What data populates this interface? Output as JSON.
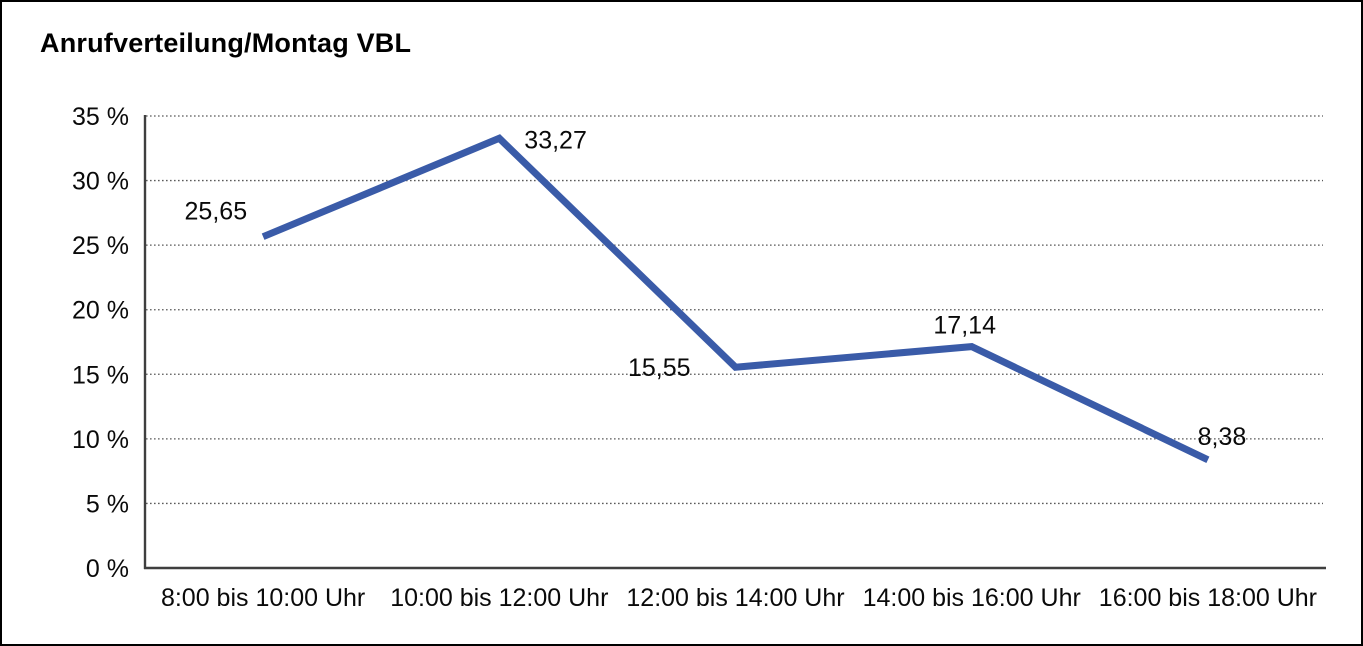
{
  "title": "Anrufverteilung/Montag VBL",
  "chart_data": {
    "type": "line",
    "title": "Anrufverteilung/Montag VBL",
    "categories": [
      "8:00 bis 10:00 Uhr",
      "10:00 bis 12:00 Uhr",
      "12:00 bis 14:00 Uhr",
      "14:00 bis 16:00 Uhr",
      "16:00 bis 18:00 Uhr"
    ],
    "values": [
      25.65,
      33.27,
      15.55,
      17.14,
      8.38
    ],
    "value_labels": [
      "25,65",
      "33,27",
      "15,55",
      "17,14",
      "8,38"
    ],
    "y_ticks": [
      {
        "value": 35,
        "label": "35 %"
      },
      {
        "value": 30,
        "label": "30 %"
      },
      {
        "value": 25,
        "label": "25 %"
      },
      {
        "value": 20,
        "label": "20 %"
      },
      {
        "value": 15,
        "label": "15 %"
      },
      {
        "value": 10,
        "label": "10 %"
      },
      {
        "value": 5,
        "label": "5 %"
      },
      {
        "value": 0,
        "label": "0 %"
      }
    ],
    "ylim": [
      0,
      35
    ],
    "xlabel": "",
    "ylabel": "",
    "grid": "horizontal-dotted",
    "legend": "none",
    "line_color": "#3A5BA8"
  }
}
